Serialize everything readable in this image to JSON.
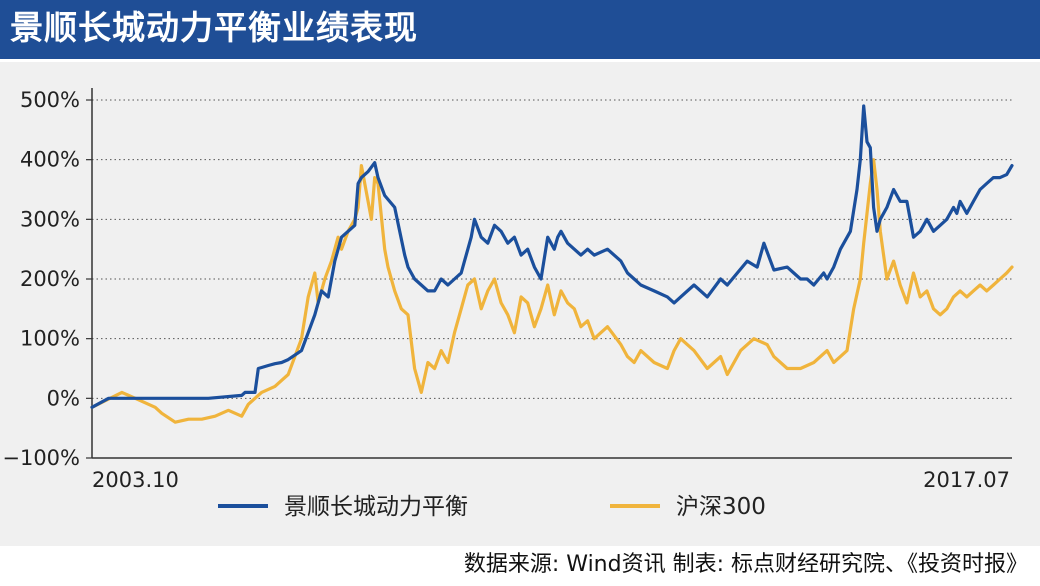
{
  "title": "景顺长城动力平衡业绩表现",
  "source": "数据来源: Wind资讯  制表: 标点财经研究院、《投资时报》",
  "colors": {
    "title_bg": "#1f4e96",
    "panel_bg": "#f0f0f0",
    "fund": "#1b4f9c",
    "index": "#f0b43c",
    "grid": "#555555"
  },
  "chart_data": {
    "type": "line",
    "title": "",
    "xlabel": "",
    "ylabel": "",
    "ylim": [
      -100,
      500
    ],
    "y_ticks": [
      500,
      400,
      300,
      200,
      100,
      0,
      -100
    ],
    "y_tick_labels": [
      "500%",
      "400%",
      "300%",
      "200%",
      "100%",
      "0%",
      "−100%"
    ],
    "x_range": [
      "2003-10",
      "2017-07"
    ],
    "x_tick_labels": [
      "2003.10",
      "2017.07"
    ],
    "grid": "horizontal dotted",
    "legend": "bottom",
    "series": [
      {
        "name": "景顺长城动力平衡",
        "color": "#1b4f9c",
        "x": [
          2003.75,
          2004.0,
          2004.2,
          2004.5,
          2005.0,
          2005.5,
          2006.0,
          2006.05,
          2006.2,
          2006.25,
          2006.4,
          2006.5,
          2006.6,
          2006.7,
          2006.9,
          2007.0,
          2007.1,
          2007.2,
          2007.3,
          2007.4,
          2007.5,
          2007.6,
          2007.7,
          2007.75,
          2007.8,
          2007.9,
          2008.0,
          2008.05,
          2008.15,
          2008.3,
          2008.45,
          2008.5,
          2008.6,
          2008.7,
          2008.8,
          2008.9,
          2009.0,
          2009.1,
          2009.2,
          2009.3,
          2009.35,
          2009.45,
          2009.5,
          2009.6,
          2009.7,
          2009.8,
          2009.9,
          2010.0,
          2010.1,
          2010.2,
          2010.3,
          2010.4,
          2010.5,
          2010.6,
          2010.7,
          2010.75,
          2010.8,
          2010.9,
          2011.0,
          2011.1,
          2011.2,
          2011.3,
          2011.5,
          2011.7,
          2011.8,
          2011.9,
          2012.0,
          2012.2,
          2012.4,
          2012.5,
          2012.6,
          2012.8,
          2013.0,
          2013.2,
          2013.3,
          2013.45,
          2013.6,
          2013.75,
          2013.85,
          2014.0,
          2014.2,
          2014.3,
          2014.4,
          2014.5,
          2014.6,
          2014.75,
          2014.8,
          2014.9,
          2015.0,
          2015.15,
          2015.25,
          2015.3,
          2015.35,
          2015.4,
          2015.45,
          2015.5,
          2015.55,
          2015.6,
          2015.7,
          2015.8,
          2015.9,
          2016.0,
          2016.05,
          2016.1,
          2016.2,
          2016.3,
          2016.4,
          2016.5,
          2016.6,
          2016.7,
          2016.75,
          2016.8,
          2016.9,
          2017.0,
          2017.1,
          2017.2,
          2017.3,
          2017.4,
          2017.5,
          2017.58
        ],
        "values": [
          -15,
          0,
          0,
          0,
          0,
          0,
          5,
          10,
          10,
          50,
          55,
          58,
          60,
          65,
          80,
          110,
          140,
          180,
          170,
          230,
          270,
          280,
          290,
          360,
          370,
          380,
          395,
          370,
          340,
          320,
          240,
          220,
          200,
          190,
          180,
          180,
          200,
          190,
          200,
          210,
          230,
          270,
          300,
          270,
          260,
          290,
          280,
          260,
          270,
          240,
          250,
          220,
          200,
          270,
          250,
          270,
          280,
          260,
          250,
          240,
          250,
          240,
          250,
          230,
          210,
          200,
          190,
          180,
          170,
          160,
          170,
          190,
          170,
          200,
          190,
          210,
          230,
          220,
          260,
          215,
          220,
          210,
          200,
          200,
          190,
          210,
          200,
          220,
          250,
          280,
          350,
          400,
          490,
          430,
          420,
          320,
          280,
          300,
          320,
          350,
          330,
          330,
          300,
          270,
          280,
          300,
          280,
          290,
          300,
          320,
          310,
          330,
          310,
          330,
          350,
          360,
          370,
          370,
          375,
          390
        ]
      },
      {
        "name": "沪深300",
        "color": "#f0b43c",
        "x": [
          2003.75,
          2004.2,
          2004.5,
          2004.7,
          2004.8,
          2005.0,
          2005.2,
          2005.4,
          2005.6,
          2005.8,
          2006.0,
          2006.1,
          2006.2,
          2006.3,
          2006.5,
          2006.7,
          2006.9,
          2007.0,
          2007.1,
          2007.15,
          2007.25,
          2007.35,
          2007.45,
          2007.5,
          2007.6,
          2007.7,
          2007.75,
          2007.8,
          2007.9,
          2007.95,
          2008.0,
          2008.05,
          2008.15,
          2008.2,
          2008.3,
          2008.4,
          2008.5,
          2008.6,
          2008.7,
          2008.8,
          2008.9,
          2009.0,
          2009.1,
          2009.2,
          2009.3,
          2009.4,
          2009.5,
          2009.6,
          2009.7,
          2009.8,
          2009.9,
          2010.0,
          2010.1,
          2010.2,
          2010.3,
          2010.4,
          2010.5,
          2010.6,
          2010.7,
          2010.8,
          2010.9,
          2011.0,
          2011.1,
          2011.2,
          2011.3,
          2011.5,
          2011.7,
          2011.8,
          2011.9,
          2012.0,
          2012.2,
          2012.4,
          2012.5,
          2012.6,
          2012.8,
          2013.0,
          2013.2,
          2013.3,
          2013.5,
          2013.7,
          2013.9,
          2014.0,
          2014.2,
          2014.4,
          2014.6,
          2014.8,
          2014.9,
          2015.0,
          2015.1,
          2015.2,
          2015.3,
          2015.35,
          2015.4,
          2015.45,
          2015.5,
          2015.55,
          2015.6,
          2015.7,
          2015.8,
          2015.9,
          2016.0,
          2016.1,
          2016.2,
          2016.3,
          2016.4,
          2016.5,
          2016.6,
          2016.7,
          2016.8,
          2016.9,
          2017.0,
          2017.1,
          2017.2,
          2017.3,
          2017.4,
          2017.5,
          2017.58
        ],
        "values": [
          -15,
          10,
          -5,
          -15,
          -25,
          -40,
          -35,
          -35,
          -30,
          -20,
          -30,
          -10,
          0,
          10,
          20,
          40,
          100,
          170,
          210,
          160,
          200,
          230,
          270,
          250,
          280,
          300,
          320,
          390,
          330,
          300,
          370,
          360,
          250,
          220,
          180,
          150,
          140,
          50,
          10,
          60,
          50,
          80,
          60,
          110,
          150,
          190,
          200,
          150,
          180,
          200,
          160,
          140,
          110,
          170,
          160,
          120,
          150,
          190,
          140,
          180,
          160,
          150,
          120,
          130,
          100,
          120,
          90,
          70,
          60,
          80,
          60,
          50,
          80,
          100,
          80,
          50,
          70,
          40,
          80,
          100,
          90,
          70,
          50,
          50,
          60,
          80,
          60,
          70,
          80,
          150,
          200,
          260,
          310,
          360,
          400,
          350,
          280,
          200,
          230,
          190,
          160,
          210,
          170,
          180,
          150,
          140,
          150,
          170,
          180,
          170,
          180,
          190,
          180,
          190,
          200,
          210,
          220
        ]
      }
    ]
  }
}
